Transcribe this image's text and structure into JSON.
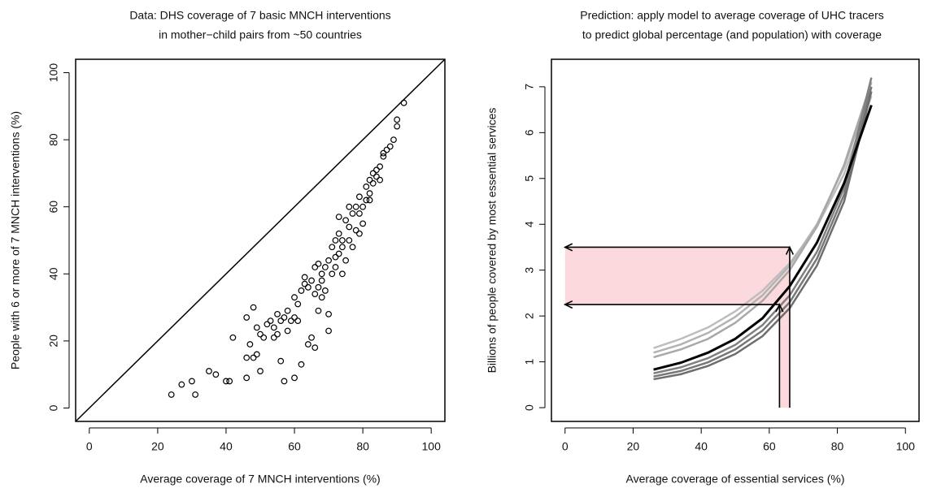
{
  "chart_data": [
    {
      "type": "scatter",
      "title": [
        "Data: DHS coverage of 7 basic MNCH interventions",
        "in mother−child pairs from ~50 countries"
      ],
      "x_label": "Average coverage of 7 MNCH interventions (%)",
      "y_label": "People with 6 or more of 7 MNCH interventions (%)",
      "x": [
        24,
        27,
        30,
        31,
        35,
        37,
        40,
        41,
        42,
        46,
        46,
        47,
        46,
        48,
        48,
        49,
        49,
        50,
        50,
        51,
        52,
        53,
        54,
        54,
        55,
        55,
        56,
        56,
        57,
        57,
        58,
        58,
        59,
        60,
        60,
        60,
        61,
        61,
        62,
        62,
        63,
        63,
        64,
        64,
        65,
        65,
        66,
        66,
        66,
        67,
        67,
        67,
        68,
        68,
        69,
        69,
        70,
        70,
        70,
        71,
        71,
        72,
        72,
        73,
        73,
        74,
        74,
        75,
        75,
        76,
        76,
        77,
        77,
        78,
        78,
        79,
        79,
        80,
        80,
        81,
        81,
        82,
        82,
        83,
        83,
        84,
        85,
        85,
        86,
        87,
        88,
        89,
        90,
        90,
        92,
        73,
        76,
        68,
        72,
        74,
        79,
        82,
        84,
        86
      ],
      "values": [
        4,
        7,
        8,
        4,
        11,
        10,
        8,
        8,
        21,
        9,
        15,
        19,
        27,
        30,
        15,
        16,
        24,
        11,
        22,
        21,
        25,
        26,
        24,
        21,
        22,
        28,
        14,
        26,
        27,
        8,
        29,
        23,
        26,
        9,
        27,
        33,
        31,
        26,
        13,
        35,
        37,
        39,
        19,
        36,
        21,
        38,
        18,
        34,
        42,
        29,
        36,
        43,
        33,
        38,
        35,
        42,
        23,
        28,
        44,
        40,
        48,
        42,
        50,
        46,
        52,
        40,
        48,
        44,
        56,
        50,
        54,
        58,
        48,
        53,
        60,
        52,
        63,
        60,
        55,
        62,
        66,
        64,
        68,
        67,
        70,
        69,
        72,
        68,
        75,
        77,
        78,
        80,
        84,
        86,
        91,
        57,
        60,
        40,
        45,
        50,
        58,
        62,
        71,
        76
      ],
      "xlim": [
        -4,
        104
      ],
      "ylim": [
        -4,
        104
      ],
      "xticks": [
        0,
        20,
        40,
        60,
        80,
        100
      ],
      "yticks": [
        0,
        20,
        40,
        60,
        80,
        100
      ],
      "marker_color": "#000000",
      "line_color": "#000000"
    },
    {
      "type": "line",
      "title": [
        "Prediction: apply model to average coverage of UHC tracers",
        "to predict global percentage (and population) with coverage"
      ],
      "x_label": "Average coverage of essential services (%)",
      "y_label": "Billions of people covered by most essential services",
      "x": [
        26,
        34,
        42,
        50,
        58,
        66,
        74,
        82,
        90
      ],
      "series": [
        {
          "color": "#bdbdbd",
          "values": [
            1.3,
            1.5,
            1.75,
            2.1,
            2.55,
            3.15,
            3.95,
            5.1,
            6.8
          ]
        },
        {
          "color": "#b3b3b3",
          "values": [
            1.2,
            1.38,
            1.63,
            1.98,
            2.45,
            3.1,
            4.0,
            5.25,
            7.0
          ]
        },
        {
          "color": "#a8a8a8",
          "values": [
            1.1,
            1.27,
            1.5,
            1.85,
            2.33,
            3.0,
            3.95,
            5.3,
            7.1
          ]
        },
        {
          "color": "#808080",
          "values": [
            0.75,
            0.88,
            1.08,
            1.37,
            1.8,
            2.45,
            3.4,
            4.8,
            7.2
          ]
        },
        {
          "color": "#777777",
          "values": [
            0.68,
            0.8,
            0.99,
            1.27,
            1.68,
            2.3,
            3.25,
            4.65,
            7.0
          ]
        },
        {
          "color": "#6e6e6e",
          "values": [
            0.62,
            0.73,
            0.91,
            1.17,
            1.56,
            2.17,
            3.1,
            4.5,
            6.9
          ]
        },
        {
          "color": "#000000",
          "values": [
            0.83,
            0.98,
            1.2,
            1.5,
            1.95,
            2.65,
            3.6,
            4.9,
            6.6
          ]
        }
      ],
      "arrows": [
        {
          "x": 63,
          "y": 2.25
        },
        {
          "x": 66,
          "y": 3.5
        }
      ],
      "shade_color": "#fbd9dc",
      "xlim": [
        -4,
        104
      ],
      "ylim": [
        -0.3,
        7.6
      ],
      "xticks": [
        0,
        20,
        40,
        60,
        80,
        100
      ],
      "yticks": [
        0,
        1,
        2,
        3,
        4,
        5,
        6,
        7
      ]
    }
  ]
}
